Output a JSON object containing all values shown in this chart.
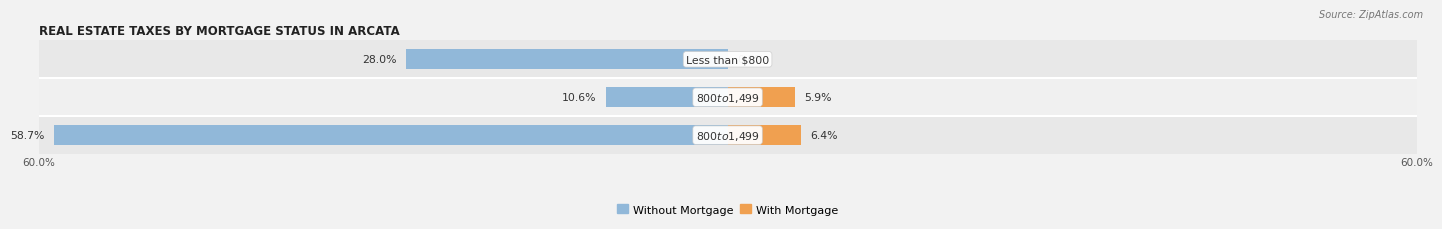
{
  "title": "REAL ESTATE TAXES BY MORTGAGE STATUS IN ARCATA",
  "source": "Source: ZipAtlas.com",
  "categories": [
    "Less than $800",
    "$800 to $1,499",
    "$800 to $1,499"
  ],
  "without_mortgage": [
    28.0,
    10.6,
    58.7
  ],
  "with_mortgage": [
    0.0,
    5.9,
    6.4
  ],
  "color_without": "#91b8d9",
  "color_with": "#f0a050",
  "xlim": 60.0,
  "bar_height": 0.52,
  "bg_color": "#f2f2f2",
  "row_bg_even": "#e8e8e8",
  "row_bg_odd": "#f0f0f0",
  "title_fontsize": 8.5,
  "label_fontsize": 7.8,
  "value_fontsize": 7.8,
  "tick_fontsize": 7.5,
  "legend_fontsize": 8,
  "source_fontsize": 7
}
